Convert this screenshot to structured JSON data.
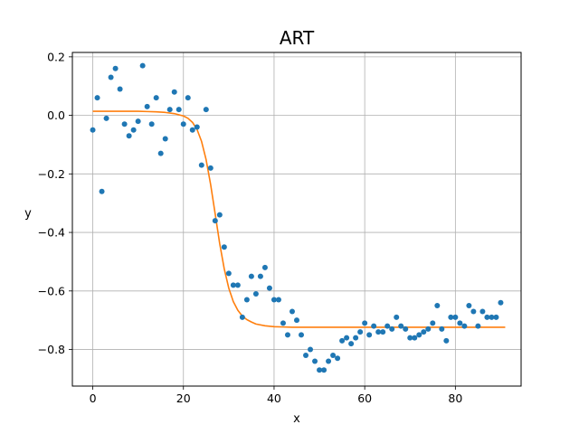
{
  "chart_data": {
    "type": "scatter",
    "title": "ART",
    "xlabel": "x",
    "ylabel": "y",
    "xlim": [
      -4.5,
      94.5
    ],
    "ylim": [
      -0.925,
      0.215
    ],
    "xticks": [
      0,
      20,
      40,
      60,
      80
    ],
    "xtick_labels": [
      "0",
      "20",
      "40",
      "60",
      "80"
    ],
    "yticks": [
      0.2,
      0.0,
      -0.2,
      -0.4,
      -0.6,
      -0.8
    ],
    "ytick_labels": [
      "0.2",
      "0.0",
      "−0.2",
      "−0.4",
      "−0.6",
      "−0.8"
    ],
    "grid": true,
    "colors": {
      "points": "#1f77b4",
      "fit": "#ff7f0e",
      "grid": "#b0b0b0"
    },
    "series": [
      {
        "kind": "scatter",
        "x": [
          0,
          1,
          2,
          3,
          4,
          5,
          6,
          7,
          8,
          9,
          10,
          11,
          12,
          13,
          14,
          15,
          16,
          17,
          18,
          19,
          20,
          21,
          22,
          23,
          24,
          25,
          26,
          27,
          28,
          29,
          30,
          31,
          32,
          33,
          34,
          35,
          36,
          37,
          38,
          39,
          40,
          41,
          42,
          43,
          44,
          45,
          46,
          47,
          48,
          49,
          50,
          51,
          52,
          53,
          54,
          55,
          56,
          57,
          58,
          59,
          60,
          61,
          62,
          63,
          64,
          65,
          66,
          67,
          68,
          69,
          70,
          71,
          72,
          73,
          74,
          75,
          76,
          77,
          78,
          79,
          80,
          81,
          82,
          83,
          84,
          85,
          86,
          87,
          88,
          89,
          90
        ],
        "y": [
          -0.05,
          0.06,
          -0.26,
          -0.01,
          0.13,
          0.16,
          0.09,
          -0.03,
          -0.07,
          -0.05,
          -0.02,
          0.17,
          0.03,
          -0.03,
          0.06,
          -0.13,
          -0.08,
          0.02,
          0.08,
          0.02,
          -0.03,
          0.06,
          -0.05,
          -0.04,
          -0.17,
          0.02,
          -0.18,
          -0.36,
          -0.34,
          -0.45,
          -0.54,
          -0.58,
          -0.58,
          -0.69,
          -0.63,
          -0.55,
          -0.61,
          -0.55,
          -0.52,
          -0.59,
          -0.63,
          -0.63,
          -0.71,
          -0.75,
          -0.67,
          -0.7,
          -0.75,
          -0.82,
          -0.8,
          -0.84,
          -0.87,
          -0.87,
          -0.84,
          -0.82,
          -0.83,
          -0.77,
          -0.76,
          -0.78,
          -0.76,
          -0.74,
          -0.71,
          -0.75,
          -0.72,
          -0.74,
          -0.74,
          -0.72,
          -0.73,
          -0.69,
          -0.72,
          -0.73,
          -0.76,
          -0.76,
          -0.75,
          -0.74,
          -0.73,
          -0.71,
          -0.65,
          -0.73,
          -0.77,
          -0.69,
          -0.69,
          -0.71,
          -0.72,
          -0.65,
          -0.67,
          -0.72,
          -0.67,
          -0.69,
          -0.69,
          -0.69,
          -0.64
        ]
      },
      {
        "kind": "line",
        "x": [
          0,
          2,
          4,
          6,
          8,
          10,
          12,
          14,
          16,
          18,
          20,
          21,
          22,
          23,
          24,
          25,
          26,
          27,
          28,
          29,
          30,
          31,
          32,
          33,
          34,
          35,
          36,
          38,
          40,
          42,
          44,
          46,
          50,
          55,
          60,
          65,
          70,
          75,
          80,
          85,
          91
        ],
        "y": [
          0.014,
          0.014,
          0.014,
          0.014,
          0.014,
          0.014,
          0.013,
          0.012,
          0.01,
          0.006,
          -0.002,
          -0.01,
          -0.024,
          -0.048,
          -0.089,
          -0.151,
          -0.236,
          -0.336,
          -0.438,
          -0.524,
          -0.59,
          -0.636,
          -0.666,
          -0.686,
          -0.698,
          -0.706,
          -0.713,
          -0.719,
          -0.722,
          -0.723,
          -0.724,
          -0.724,
          -0.724,
          -0.724,
          -0.724,
          -0.724,
          -0.724,
          -0.724,
          -0.724,
          -0.724,
          -0.724
        ]
      }
    ]
  }
}
